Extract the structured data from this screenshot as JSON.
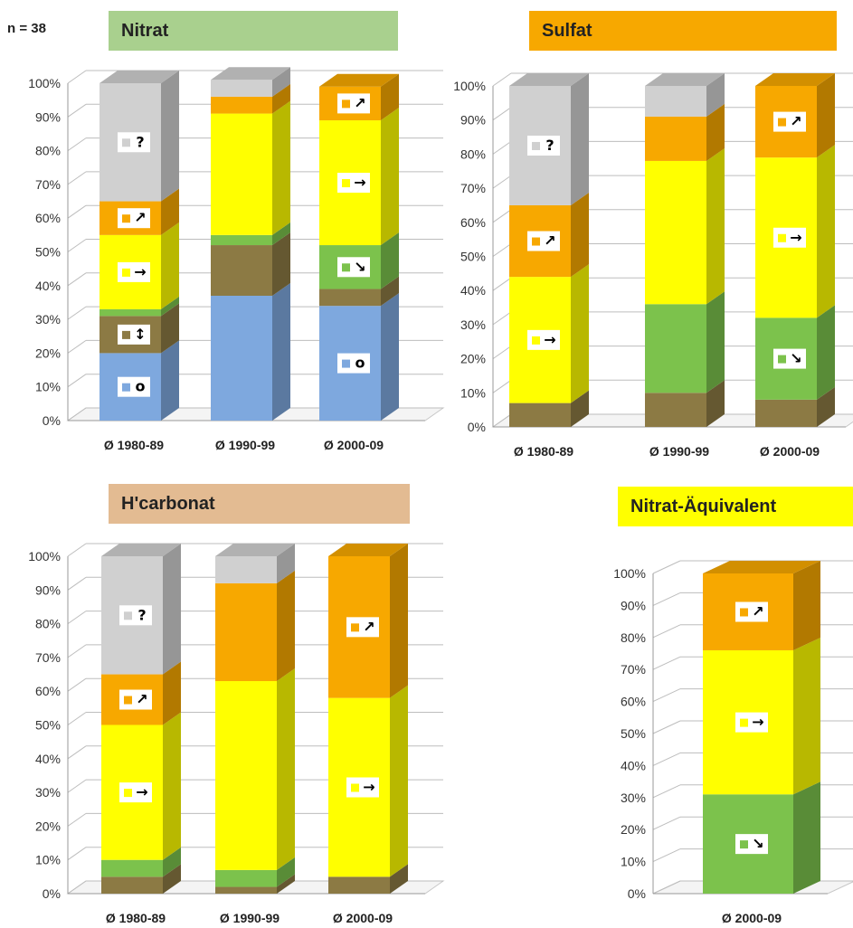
{
  "n_label": "n = 38",
  "colors": {
    "unknown": "#d0d0d0",
    "up": "#f7a800",
    "stable": "#ffff00",
    "down": "#7cc24c",
    "fluctuating": "#8c7a44",
    "none": "#7ea8de"
  },
  "symbols": {
    "unknown": "?",
    "up": "↗",
    "stable": "→",
    "down": "↘",
    "fluctuating": "↕",
    "none": "o"
  },
  "chart_data": [
    {
      "type": "bar",
      "stacked": true,
      "title": "Nitrat",
      "title_color": "#a9d08e",
      "ylim": [
        0,
        100
      ],
      "ytick_labels": [
        "0%",
        "10%",
        "20%",
        "30%",
        "40%",
        "50%",
        "60%",
        "70%",
        "80%",
        "90%",
        "100%"
      ],
      "categories": [
        "Ø 1980-89",
        "Ø 1990-99",
        "Ø 2000-09"
      ],
      "series": [
        {
          "key": "none",
          "values": [
            20,
            37,
            34
          ]
        },
        {
          "key": "fluctuating",
          "values": [
            11,
            15,
            5
          ]
        },
        {
          "key": "down",
          "values": [
            2,
            3,
            13
          ]
        },
        {
          "key": "stable",
          "values": [
            22,
            36,
            37
          ]
        },
        {
          "key": "up",
          "values": [
            10,
            5,
            10
          ]
        },
        {
          "key": "unknown",
          "values": [
            35,
            5,
            0
          ]
        }
      ],
      "labels": [
        {
          "bar": 0,
          "series": "unknown"
        },
        {
          "bar": 0,
          "series": "up"
        },
        {
          "bar": 0,
          "series": "stable"
        },
        {
          "bar": 0,
          "series": "fluctuating"
        },
        {
          "bar": 0,
          "series": "none"
        },
        {
          "bar": 2,
          "series": "up"
        },
        {
          "bar": 2,
          "series": "stable"
        },
        {
          "bar": 2,
          "series": "down"
        },
        {
          "bar": 2,
          "series": "none"
        }
      ]
    },
    {
      "type": "bar",
      "stacked": true,
      "title": "Sulfat",
      "title_color": "#f7a800",
      "ylim": [
        0,
        100
      ],
      "ytick_labels": [
        "0%",
        "10%",
        "20%",
        "30%",
        "40%",
        "50%",
        "60%",
        "70%",
        "80%",
        "90%",
        "100%"
      ],
      "categories": [
        "Ø 1980-89",
        "Ø 1990-99",
        "Ø 2000-09"
      ],
      "series": [
        {
          "key": "fluctuating",
          "values": [
            7,
            10,
            8
          ]
        },
        {
          "key": "down",
          "values": [
            0,
            26,
            24
          ]
        },
        {
          "key": "stable",
          "values": [
            37,
            42,
            47
          ]
        },
        {
          "key": "up",
          "values": [
            21,
            13,
            21
          ]
        },
        {
          "key": "unknown",
          "values": [
            35,
            9,
            0
          ]
        }
      ],
      "labels": [
        {
          "bar": 0,
          "series": "unknown"
        },
        {
          "bar": 0,
          "series": "up"
        },
        {
          "bar": 0,
          "series": "stable"
        },
        {
          "bar": 2,
          "series": "up"
        },
        {
          "bar": 2,
          "series": "stable"
        },
        {
          "bar": 2,
          "series": "down"
        }
      ]
    },
    {
      "type": "bar",
      "stacked": true,
      "title": "H'carbonat",
      "title_color": "#e3bb92",
      "ylim": [
        0,
        100
      ],
      "ytick_labels": [
        "0%",
        "10%",
        "20%",
        "30%",
        "40%",
        "50%",
        "60%",
        "70%",
        "80%",
        "90%",
        "100%"
      ],
      "categories": [
        "Ø 1980-89",
        "Ø 1990-99",
        "Ø 2000-09"
      ],
      "series": [
        {
          "key": "fluctuating",
          "values": [
            5,
            2,
            5
          ]
        },
        {
          "key": "down",
          "values": [
            5,
            5,
            0
          ]
        },
        {
          "key": "stable",
          "values": [
            40,
            56,
            53
          ]
        },
        {
          "key": "up",
          "values": [
            15,
            29,
            42
          ]
        },
        {
          "key": "unknown",
          "values": [
            35,
            8,
            0
          ]
        }
      ],
      "labels": [
        {
          "bar": 0,
          "series": "unknown"
        },
        {
          "bar": 0,
          "series": "up"
        },
        {
          "bar": 0,
          "series": "stable"
        },
        {
          "bar": 2,
          "series": "up"
        },
        {
          "bar": 2,
          "series": "stable"
        }
      ]
    },
    {
      "type": "bar",
      "stacked": true,
      "title": "Nitrat-Äquivalent",
      "title_color": "#ffff00",
      "ylim": [
        0,
        100
      ],
      "ytick_labels": [
        "0%",
        "10%",
        "20%",
        "30%",
        "40%",
        "50%",
        "60%",
        "70%",
        "80%",
        "90%",
        "100%"
      ],
      "categories": [
        "Ø 2000-09"
      ],
      "series": [
        {
          "key": "down",
          "values": [
            31
          ]
        },
        {
          "key": "stable",
          "values": [
            45
          ]
        },
        {
          "key": "up",
          "values": [
            24
          ]
        }
      ],
      "labels": [
        {
          "bar": 0,
          "series": "up"
        },
        {
          "bar": 0,
          "series": "stable"
        },
        {
          "bar": 0,
          "series": "down"
        }
      ]
    }
  ]
}
